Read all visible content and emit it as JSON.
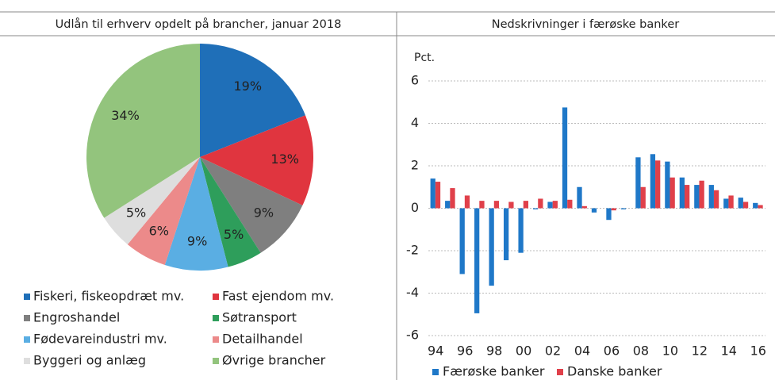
{
  "chart_data": [
    {
      "type": "pie",
      "title": "Udlån til erhverv opdelt på brancher, januar 2018",
      "categories": [
        "Fiskeri, fiskeopdræt mv.",
        "Fast ejendom mv.",
        "Engroshandel",
        "Søtransport",
        "Fødevareindustri mv.",
        "Detailhandel",
        "Byggeri og anlæg",
        "Øvrige brancher"
      ],
      "values": [
        19,
        13,
        9,
        5,
        9,
        6,
        5,
        34
      ],
      "value_labels": [
        "19%",
        "13%",
        "9%",
        "5%",
        "9%",
        "6%",
        "5%",
        "34%"
      ],
      "colors": [
        "#1f6fb8",
        "#e0353f",
        "#7f7f7f",
        "#2e9e5b",
        "#5aaee3",
        "#ec8a8a",
        "#dedede",
        "#93c47d"
      ]
    },
    {
      "type": "bar",
      "title": "Nedskrivninger i færøske banker",
      "ylabel": "Pct.",
      "categories": [
        "94",
        null,
        "96",
        null,
        "98",
        null,
        "00",
        null,
        "02",
        null,
        "04",
        null,
        "06",
        null,
        "08",
        null,
        "10",
        null,
        "12",
        null,
        "14",
        null,
        "16"
      ],
      "series": [
        {
          "name": "Færøske banker",
          "color": "#1f78c8",
          "values": [
            1.4,
            0.35,
            -3.1,
            -4.95,
            -3.65,
            -2.45,
            -2.1,
            -0.05,
            0.3,
            4.75,
            1.0,
            -0.2,
            -0.55,
            -0.05,
            2.4,
            2.55,
            2.2,
            1.45,
            1.1,
            1.1,
            0.45,
            0.5,
            0.25
          ]
        },
        {
          "name": "Danske banker",
          "color": "#e0404a",
          "values": [
            1.25,
            0.95,
            0.6,
            0.35,
            0.35,
            0.3,
            0.35,
            0.45,
            0.35,
            0.4,
            0.1,
            0.0,
            -0.1,
            0.0,
            1.0,
            2.25,
            1.45,
            1.1,
            1.3,
            0.85,
            0.6,
            0.3,
            0.15
          ]
        }
      ],
      "ylim": [
        -6,
        6
      ],
      "yticks": [
        -6,
        -4,
        -2,
        0,
        2,
        4,
        6
      ],
      "grid": true,
      "legend": "bottom"
    }
  ]
}
